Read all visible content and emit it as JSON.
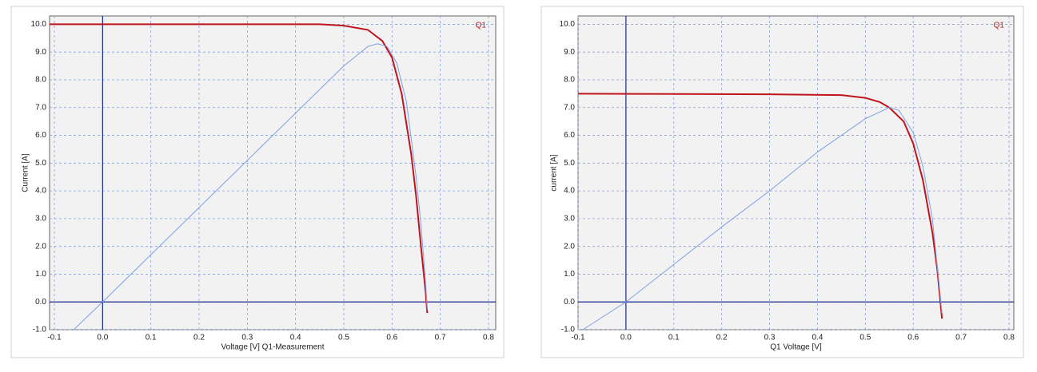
{
  "chart_data": [
    {
      "type": "line",
      "xlabel": "Voltage [V] Q1-Measurement",
      "ylabel": "Current [A]",
      "xlim": [
        -0.11,
        0.815
      ],
      "ylim": [
        -1.0,
        10.3
      ],
      "xticks": [
        -0.1,
        {
          "value": 0,
          "label": "0.0"
        },
        0.1,
        0.2,
        0.3,
        0.4,
        0.5,
        0.6,
        0.7,
        0.8
      ],
      "yticks": [
        {
          "value": -1,
          "label": "-1.0"
        },
        {
          "value": 0,
          "label": "0.0"
        },
        {
          "value": 1,
          "label": "1.0"
        },
        {
          "value": 2,
          "label": "2.0"
        },
        {
          "value": 3,
          "label": "3.0"
        },
        {
          "value": 4,
          "label": "4.0"
        },
        {
          "value": 5,
          "label": "5.0"
        },
        {
          "value": 6,
          "label": "6.0"
        },
        {
          "value": 7,
          "label": "7.0"
        },
        {
          "value": 8,
          "label": "8.0"
        },
        {
          "value": 9,
          "label": "9.0"
        },
        {
          "value": 10,
          "label": "10.0"
        }
      ],
      "grid": true,
      "zero_axes": true,
      "legend": "upper right",
      "series": [
        {
          "name": "Q1",
          "color": "#c0141c",
          "x": [
            -0.11,
            0.1,
            0.3,
            0.45,
            0.5,
            0.55,
            0.58,
            0.6,
            0.62,
            0.64,
            0.65,
            0.66,
            0.67,
            0.673
          ],
          "values": [
            10,
            10,
            10,
            10,
            9.95,
            9.8,
            9.4,
            8.8,
            7.5,
            5.3,
            3.8,
            2.0,
            0.3,
            -0.4
          ]
        },
        {
          "color": "#7f9fe6",
          "x": [
            -0.06,
            0,
            0.1,
            0.2,
            0.3,
            0.4,
            0.5,
            0.55,
            0.57,
            0.59,
            0.61,
            0.63,
            0.65,
            0.66,
            0.67,
            0.673
          ],
          "values": [
            -1,
            0,
            1.7,
            3.4,
            5.1,
            6.8,
            8.5,
            9.2,
            9.3,
            9.2,
            8.6,
            7.2,
            4.5,
            2.8,
            0.6,
            -0.3
          ]
        }
      ]
    },
    {
      "type": "line",
      "xlabel": "Q1 Voltage [V]",
      "ylabel": "current [A]",
      "xlim": [
        -0.1,
        0.81
      ],
      "ylim": [
        -1.0,
        10.3
      ],
      "xticks": [
        -0.1,
        {
          "value": 0,
          "label": "0.0"
        },
        0.1,
        0.2,
        0.3,
        0.4,
        0.5,
        0.6,
        0.7,
        0.8
      ],
      "yticks": [
        {
          "value": -1,
          "label": "-1.0"
        },
        {
          "value": 0,
          "label": "0.0"
        },
        {
          "value": 1,
          "label": "1.0"
        },
        {
          "value": 2,
          "label": "2.0"
        },
        {
          "value": 3,
          "label": "3.0"
        },
        {
          "value": 4,
          "label": "4.0"
        },
        {
          "value": 5,
          "label": "5.0"
        },
        {
          "value": 6,
          "label": "6.0"
        },
        {
          "value": 7,
          "label": "7.0"
        },
        {
          "value": 8,
          "label": "8.0"
        },
        {
          "value": 9,
          "label": "9.0"
        },
        {
          "value": 10,
          "label": "10.0"
        }
      ],
      "grid": true,
      "zero_axes": true,
      "legend": "upper right",
      "series": [
        {
          "name": "Q1",
          "color": "#c0141c",
          "x": [
            -0.1,
            0.3,
            0.45,
            0.5,
            0.53,
            0.55,
            0.58,
            0.6,
            0.62,
            0.64,
            0.65,
            0.66
          ],
          "values": [
            7.5,
            7.48,
            7.45,
            7.35,
            7.2,
            7.0,
            6.5,
            5.7,
            4.4,
            2.5,
            1.2,
            -0.6
          ]
        },
        {
          "color": "#7f9fe6",
          "x": [
            -0.09,
            0,
            0.1,
            0.2,
            0.3,
            0.4,
            0.5,
            0.55,
            0.57,
            0.6,
            0.62,
            0.64,
            0.66
          ],
          "values": [
            -1,
            0,
            1.35,
            2.7,
            4.0,
            5.4,
            6.6,
            7.0,
            6.9,
            6.1,
            4.9,
            3.0,
            -0.4
          ]
        }
      ]
    }
  ]
}
